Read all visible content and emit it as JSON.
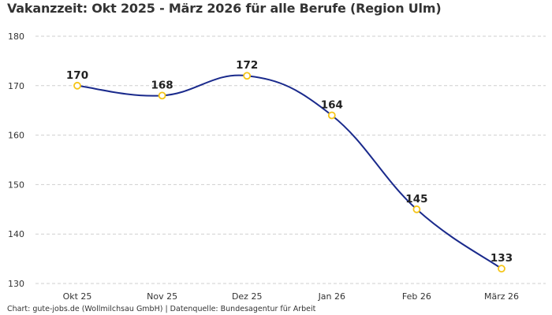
{
  "chart_data": {
    "type": "line",
    "title": "Vakanzzeit: Okt 2025 - März 2026 für alle Berufe (Region Ulm)",
    "categories": [
      "Okt 25",
      "Nov 25",
      "Dez 25",
      "Jan 26",
      "Feb 26",
      "März 26"
    ],
    "values": [
      170,
      168,
      172,
      164,
      145,
      133
    ],
    "xlabel": "",
    "ylabel": "",
    "ylim": [
      130,
      180
    ],
    "yticks": [
      130,
      140,
      150,
      160,
      170,
      180
    ],
    "grid": true,
    "smooth": true,
    "line_color": "#1a2a8c",
    "marker_color": "#f5c518",
    "data_labels": true
  },
  "footer": "Chart: gute-jobs.de (Wollmilchsau GmbH) | Datenquelle: Bundesagentur für Arbeit"
}
